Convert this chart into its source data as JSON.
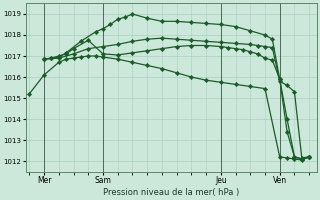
{
  "background_color": "#cce8da",
  "grid_color": "#aacfbe",
  "line_color": "#1a5c28",
  "marker_color": "#1a5c28",
  "xlabel": "Pression niveau de la mer( hPa )",
  "ylim": [
    1011.5,
    1019.5
  ],
  "yticks": [
    1012,
    1013,
    1014,
    1015,
    1016,
    1017,
    1018,
    1019
  ],
  "xtick_labels": [
    "Mer",
    "Sam",
    "Jeu",
    "Ven"
  ],
  "xtick_positions": [
    4,
    20,
    52,
    68
  ],
  "vlines": [
    4,
    20,
    52,
    68
  ],
  "series": [
    {
      "x": [
        0,
        4,
        8,
        10,
        12,
        14,
        16,
        18,
        20,
        24,
        28,
        32,
        36,
        40,
        44,
        48,
        52,
        56,
        60,
        64,
        68,
        70,
        72,
        74,
        76
      ],
      "y": [
        1015.2,
        1016.1,
        1016.7,
        1016.85,
        1016.9,
        1016.95,
        1017.0,
        1017.0,
        1016.95,
        1016.85,
        1016.7,
        1016.55,
        1016.4,
        1016.2,
        1016.0,
        1015.85,
        1015.75,
        1015.65,
        1015.55,
        1015.45,
        1012.2,
        1012.15,
        1012.1,
        1012.05,
        1012.2
      ]
    },
    {
      "x": [
        4,
        8,
        12,
        16,
        20,
        24,
        28,
        32,
        36,
        40,
        44,
        48,
        52,
        56,
        60,
        62,
        64,
        66,
        68,
        70,
        72,
        74,
        76
      ],
      "y": [
        1016.85,
        1016.9,
        1017.1,
        1017.35,
        1017.45,
        1017.55,
        1017.7,
        1017.8,
        1017.85,
        1017.8,
        1017.75,
        1017.7,
        1017.65,
        1017.6,
        1017.55,
        1017.5,
        1017.45,
        1017.4,
        1015.8,
        1015.6,
        1015.3,
        1012.15,
        1012.2
      ]
    },
    {
      "x": [
        4,
        6,
        8,
        10,
        12,
        16,
        20,
        24,
        28,
        32,
        36,
        40,
        44,
        48,
        52,
        54,
        56,
        58,
        60,
        62,
        64,
        66,
        68,
        70,
        72,
        74,
        76
      ],
      "y": [
        1016.85,
        1016.9,
        1017.0,
        1017.1,
        1017.35,
        1017.75,
        1017.1,
        1017.05,
        1017.15,
        1017.25,
        1017.35,
        1017.45,
        1017.5,
        1017.5,
        1017.45,
        1017.4,
        1017.35,
        1017.3,
        1017.2,
        1017.1,
        1016.9,
        1016.8,
        1015.9,
        1013.4,
        1012.2,
        1012.1,
        1012.2
      ]
    },
    {
      "x": [
        4,
        6,
        8,
        10,
        14,
        18,
        20,
        22,
        24,
        26,
        28,
        32,
        36,
        40,
        44,
        48,
        52,
        56,
        60,
        64,
        66,
        68,
        70,
        72,
        74,
        76
      ],
      "y": [
        1016.85,
        1016.9,
        1016.95,
        1017.15,
        1017.7,
        1018.15,
        1018.3,
        1018.5,
        1018.75,
        1018.85,
        1019.0,
        1018.8,
        1018.65,
        1018.65,
        1018.6,
        1018.55,
        1018.5,
        1018.4,
        1018.2,
        1018.0,
        1017.8,
        1015.9,
        1014.0,
        1012.2,
        1012.1,
        1012.2
      ]
    }
  ]
}
